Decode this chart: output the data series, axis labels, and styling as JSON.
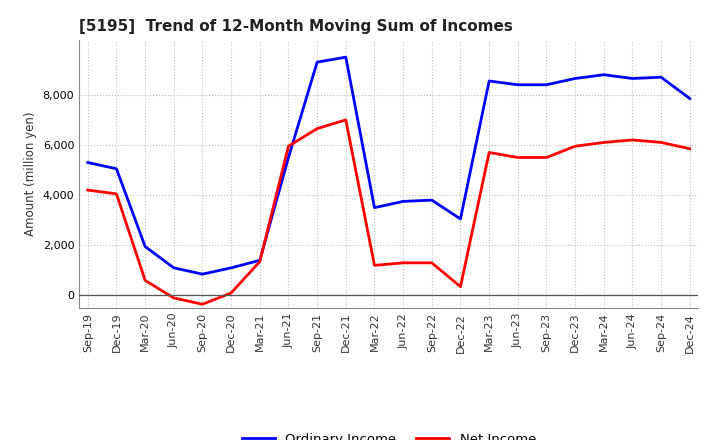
{
  "title": "[5195]  Trend of 12-Month Moving Sum of Incomes",
  "ylabel": "Amount (million yen)",
  "background_color": "#ffffff",
  "grid_color": "#bbbbbb",
  "line_blue": "#0000ff",
  "line_red": "#ff0000",
  "legend_labels": [
    "Ordinary Income",
    "Net Income"
  ],
  "x_labels": [
    "Sep-19",
    "Dec-19",
    "Mar-20",
    "Jun-20",
    "Sep-20",
    "Dec-20",
    "Mar-21",
    "Jun-21",
    "Sep-21",
    "Dec-21",
    "Mar-22",
    "Jun-22",
    "Sep-22",
    "Dec-22",
    "Mar-23",
    "Jun-23",
    "Sep-23",
    "Dec-23",
    "Mar-24",
    "Jun-24",
    "Sep-24",
    "Dec-24"
  ],
  "ordinary_income": [
    5300,
    5050,
    1950,
    1100,
    850,
    1100,
    1400,
    5500,
    9300,
    9500,
    3500,
    3750,
    3800,
    3050,
    8550,
    8400,
    8400,
    8650,
    8800,
    8650,
    8700,
    7850
  ],
  "net_income": [
    4200,
    4050,
    600,
    -100,
    -350,
    100,
    1350,
    5950,
    6650,
    7000,
    1200,
    1300,
    1300,
    350,
    5700,
    5500,
    5500,
    5950,
    6100,
    6200,
    6100,
    5850
  ],
  "ylim": [
    -500,
    10200
  ],
  "yticks": [
    0,
    2000,
    4000,
    6000,
    8000
  ],
  "title_fontsize": 11,
  "axis_label_fontsize": 8.5,
  "tick_fontsize": 8
}
